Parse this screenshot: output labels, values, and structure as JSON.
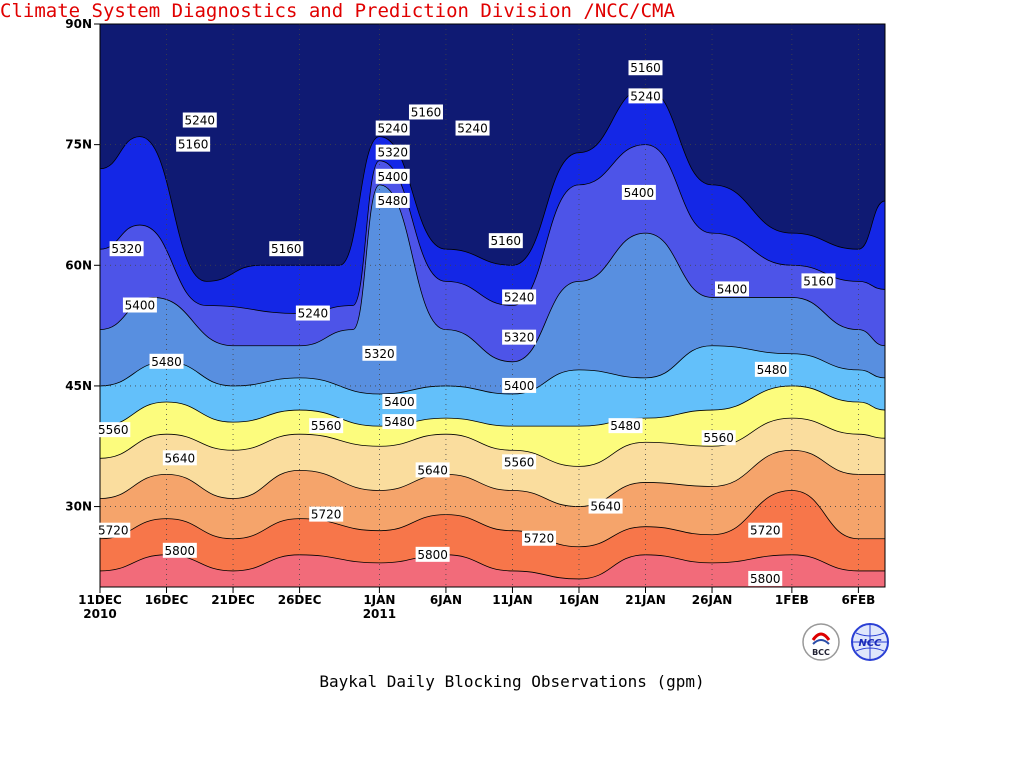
{
  "chart_data": {
    "type": "heatmap",
    "title": "Baykal Daily Blocking Observations (gpm)",
    "yticks": [
      {
        "label": "90N",
        "lat": 90
      },
      {
        "label": "75N",
        "lat": 75
      },
      {
        "label": "60N",
        "lat": 60
      },
      {
        "label": "45N",
        "lat": 45
      },
      {
        "label": "30N",
        "lat": 30
      }
    ],
    "xticks": [
      {
        "label": "11DEC",
        "sub": "2010",
        "day": 0
      },
      {
        "label": "16DEC",
        "sub": "",
        "day": 5
      },
      {
        "label": "21DEC",
        "sub": "",
        "day": 10
      },
      {
        "label": "26DEC",
        "sub": "",
        "day": 15
      },
      {
        "label": "1JAN",
        "sub": "2011",
        "day": 21
      },
      {
        "label": "6JAN",
        "sub": "",
        "day": 26
      },
      {
        "label": "11JAN",
        "sub": "",
        "day": 31
      },
      {
        "label": "16JAN",
        "sub": "",
        "day": 36
      },
      {
        "label": "21JAN",
        "sub": "",
        "day": 41
      },
      {
        "label": "26JAN",
        "sub": "",
        "day": 46
      },
      {
        "label": "1FEB",
        "sub": "",
        "day": 52
      },
      {
        "label": "6FEB",
        "sub": "",
        "day": 57
      }
    ],
    "xlim_days": [
      0,
      59
    ],
    "ylim": [
      20,
      90
    ],
    "grid": true,
    "levels": [
      5160,
      5240,
      5320,
      5400,
      5480,
      5560,
      5640,
      5720,
      5800
    ],
    "colors": [
      "#0f1a73",
      "#1427e6",
      "#4d54e8",
      "#588fe0",
      "#63c0fa",
      "#fcfc7d",
      "#fadd9e",
      "#f5a46b",
      "#f7764a",
      "#f26b7a"
    ],
    "contour_bands": [
      {
        "level": 5800,
        "points": [
          [
            0,
            22
          ],
          [
            5,
            24
          ],
          [
            10,
            22
          ],
          [
            15,
            24
          ],
          [
            21,
            23
          ],
          [
            26,
            24
          ],
          [
            31,
            22
          ],
          [
            36,
            21
          ],
          [
            41,
            24
          ],
          [
            46,
            23
          ],
          [
            52,
            24
          ],
          [
            57,
            22
          ],
          [
            59,
            22
          ]
        ]
      },
      {
        "level": 5720,
        "points": [
          [
            0,
            26
          ],
          [
            5,
            28.5
          ],
          [
            10,
            26
          ],
          [
            15,
            28.5
          ],
          [
            21,
            27
          ],
          [
            26,
            29
          ],
          [
            31,
            27
          ],
          [
            36,
            25
          ],
          [
            41,
            27.5
          ],
          [
            46,
            26.5
          ],
          [
            52,
            32
          ],
          [
            57,
            26
          ],
          [
            59,
            26
          ]
        ]
      },
      {
        "level": 5640,
        "points": [
          [
            0,
            31
          ],
          [
            5,
            34
          ],
          [
            10,
            31
          ],
          [
            15,
            34.5
          ],
          [
            21,
            32
          ],
          [
            26,
            34
          ],
          [
            31,
            32
          ],
          [
            36,
            30
          ],
          [
            41,
            33
          ],
          [
            46,
            32.5
          ],
          [
            52,
            37
          ],
          [
            57,
            34
          ],
          [
            59,
            34
          ]
        ]
      },
      {
        "level": 5560,
        "points": [
          [
            0,
            36
          ],
          [
            5,
            39
          ],
          [
            10,
            37
          ],
          [
            15,
            39
          ],
          [
            21,
            37.5
          ],
          [
            26,
            39
          ],
          [
            31,
            37
          ],
          [
            36,
            35
          ],
          [
            41,
            38
          ],
          [
            46,
            37.5
          ],
          [
            52,
            41
          ],
          [
            57,
            39
          ],
          [
            59,
            38.5
          ]
        ]
      },
      {
        "level": 5480,
        "points": [
          [
            0,
            40
          ],
          [
            5,
            43
          ],
          [
            10,
            40.5
          ],
          [
            15,
            42
          ],
          [
            21,
            40
          ],
          [
            26,
            41
          ],
          [
            31,
            40
          ],
          [
            36,
            40
          ],
          [
            41,
            41
          ],
          [
            46,
            42
          ],
          [
            52,
            45
          ],
          [
            57,
            43
          ],
          [
            59,
            42
          ]
        ]
      },
      {
        "level": 5400,
        "points": [
          [
            0,
            45
          ],
          [
            5,
            48
          ],
          [
            10,
            45
          ],
          [
            15,
            46
          ],
          [
            21,
            44
          ],
          [
            26,
            45
          ],
          [
            31,
            44
          ],
          [
            36,
            47
          ],
          [
            41,
            46
          ],
          [
            46,
            50
          ],
          [
            52,
            49
          ],
          [
            57,
            47
          ],
          [
            59,
            46
          ]
        ]
      },
      {
        "level": 5320,
        "points": [
          [
            0,
            52
          ],
          [
            4,
            56
          ],
          [
            10,
            50
          ],
          [
            15,
            50
          ],
          [
            19,
            52
          ],
          [
            21,
            70
          ],
          [
            26,
            52
          ],
          [
            31,
            48
          ],
          [
            36,
            58
          ],
          [
            41,
            64
          ],
          [
            46,
            56
          ],
          [
            52,
            56
          ],
          [
            57,
            52
          ],
          [
            59,
            50
          ]
        ]
      },
      {
        "level": 5240,
        "points": [
          [
            0,
            62
          ],
          [
            3,
            65
          ],
          [
            8,
            55
          ],
          [
            15,
            54
          ],
          [
            19,
            55
          ],
          [
            21,
            73
          ],
          [
            26,
            58
          ],
          [
            31,
            55
          ],
          [
            36,
            70
          ],
          [
            41,
            75
          ],
          [
            46,
            64
          ],
          [
            52,
            60
          ],
          [
            57,
            58
          ],
          [
            59,
            57
          ]
        ]
      },
      {
        "level": 5160,
        "points": [
          [
            0,
            72
          ],
          [
            3,
            76
          ],
          [
            8,
            58
          ],
          [
            12,
            60
          ],
          [
            18,
            60
          ],
          [
            21,
            76
          ],
          [
            26,
            62
          ],
          [
            31,
            60
          ],
          [
            36,
            74
          ],
          [
            41,
            82
          ],
          [
            46,
            70
          ],
          [
            52,
            64
          ],
          [
            57,
            62
          ],
          [
            59,
            68
          ]
        ]
      }
    ],
    "contour_labels": [
      {
        "text": "5160",
        "day": 7,
        "lat": 75
      },
      {
        "text": "5240",
        "day": 7.5,
        "lat": 78
      },
      {
        "text": "5160",
        "day": 14,
        "lat": 62
      },
      {
        "text": "5240",
        "day": 16,
        "lat": 54
      },
      {
        "text": "5320",
        "day": 2,
        "lat": 62
      },
      {
        "text": "5400",
        "day": 3,
        "lat": 55
      },
      {
        "text": "5480",
        "day": 5,
        "lat": 48
      },
      {
        "text": "5320",
        "day": 21,
        "lat": 49
      },
      {
        "text": "5160",
        "day": 24.5,
        "lat": 79
      },
      {
        "text": "5240",
        "day": 22,
        "lat": 77
      },
      {
        "text": "5320",
        "day": 22,
        "lat": 74
      },
      {
        "text": "5400",
        "day": 22,
        "lat": 71
      },
      {
        "text": "5480",
        "day": 22,
        "lat": 68
      },
      {
        "text": "5240",
        "day": 28,
        "lat": 77
      },
      {
        "text": "5160",
        "day": 30.5,
        "lat": 63
      },
      {
        "text": "5240",
        "day": 31.5,
        "lat": 56
      },
      {
        "text": "5320",
        "day": 31.5,
        "lat": 51
      },
      {
        "text": "5400",
        "day": 31.5,
        "lat": 45
      },
      {
        "text": "5400",
        "day": 22.5,
        "lat": 43
      },
      {
        "text": "5480",
        "day": 22.5,
        "lat": 40.5
      },
      {
        "text": "5560",
        "day": 17,
        "lat": 40
      },
      {
        "text": "5560",
        "day": 1,
        "lat": 39.5
      },
      {
        "text": "5640",
        "day": 6,
        "lat": 36
      },
      {
        "text": "5640",
        "day": 25,
        "lat": 34.5
      },
      {
        "text": "5560",
        "day": 31.5,
        "lat": 35.5
      },
      {
        "text": "5480",
        "day": 39.5,
        "lat": 40
      },
      {
        "text": "5400",
        "day": 40.5,
        "lat": 69
      },
      {
        "text": "5240",
        "day": 41,
        "lat": 81
      },
      {
        "text": "5160",
        "day": 41,
        "lat": 84.5
      },
      {
        "text": "5400",
        "day": 47.5,
        "lat": 57
      },
      {
        "text": "5160",
        "day": 54,
        "lat": 58
      },
      {
        "text": "5480",
        "day": 50.5,
        "lat": 47
      },
      {
        "text": "5560",
        "day": 46.5,
        "lat": 38.5
      },
      {
        "text": "5640",
        "day": 38,
        "lat": 30
      },
      {
        "text": "5720",
        "day": 1,
        "lat": 27
      },
      {
        "text": "5720",
        "day": 17,
        "lat": 29
      },
      {
        "text": "5720",
        "day": 33,
        "lat": 26
      },
      {
        "text": "5720",
        "day": 50,
        "lat": 27
      },
      {
        "text": "5800",
        "day": 6,
        "lat": 24.5
      },
      {
        "text": "5800",
        "day": 25,
        "lat": 24
      },
      {
        "text": "5800",
        "day": 50,
        "lat": 21
      }
    ]
  },
  "plot_title": "Baykal Daily Blocking Observations (gpm)",
  "footer": "Climate System Diagnostics and Prediction Division /NCC/CMA",
  "footer_color": "#e00000",
  "logos": [
    {
      "name": "bcc-logo",
      "text": "BCC"
    },
    {
      "name": "ncc-logo",
      "text": "NCC"
    }
  ]
}
